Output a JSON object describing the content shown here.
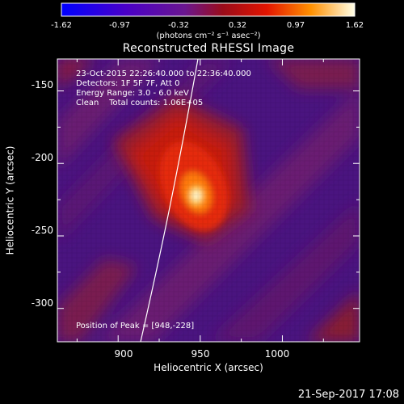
{
  "colorbar": {
    "ticks": [
      "-1.62",
      "-0.97",
      "-0.32",
      "0.32",
      "0.97",
      "1.62"
    ],
    "units": "(photons cm⁻² s⁻¹ asec⁻²)",
    "range": [
      -1.62,
      1.62
    ]
  },
  "chart_data": {
    "type": "heatmap",
    "title": "Reconstructed RHESSI Image",
    "xlabel": "Heliocentric X (arcsec)",
    "ylabel": "Heliocentric Y (arcsec)",
    "xlim": [
      863,
      1047
    ],
    "ylim": [
      -323,
      -128
    ],
    "xticks": [
      900,
      950,
      1000
    ],
    "yticks": [
      -150,
      -200,
      -250,
      -300
    ],
    "peak": [
      948,
      -228
    ],
    "info": [
      "23-Oct-2015 22:26:40.000 to 22:36:40.000",
      "Detectors: 1F 5F 7F, Att 0",
      "Energy Range: 3.0 - 6.0 keV",
      "Clean    Total counts: 1.06E+05"
    ],
    "peak_label": "Position of Peak = [948,-228]",
    "limb_curve": "solar limb",
    "colors": {
      "axes": "#ffffff",
      "background": "#000000"
    }
  },
  "footer": {
    "timestamp": "21-Sep-2017 17:08"
  }
}
